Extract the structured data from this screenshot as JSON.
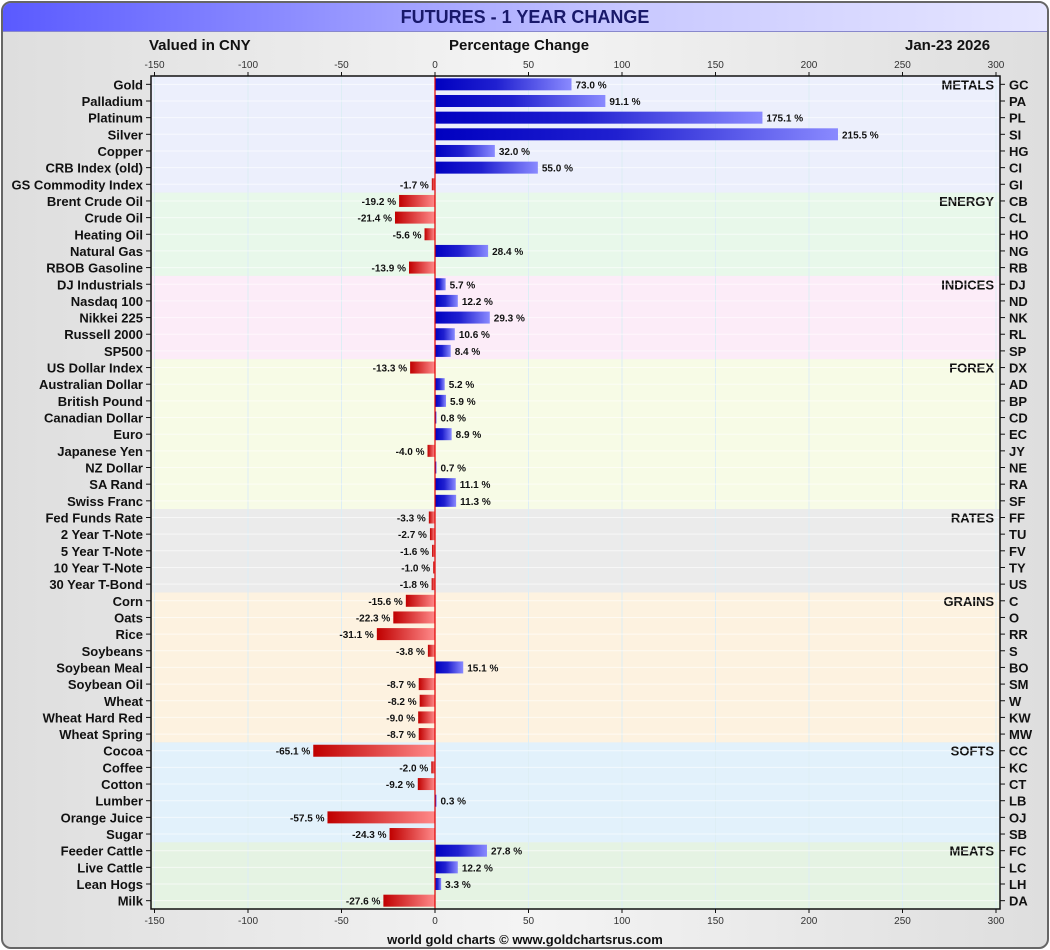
{
  "title": "FUTURES - 1 YEAR CHANGE",
  "header": {
    "currency": "Valued in CNY",
    "measure": "Percentage Change",
    "date": "Jan-23  2026"
  },
  "footer": "world gold charts © www.goldchartsrus.com",
  "colors": {
    "positive_dark": "#0000c0",
    "positive_light": "#8a8aff",
    "negative_dark": "#c00000",
    "negative_light": "#ff8a8a",
    "zero_line": "#e00000"
  },
  "chart_data": {
    "type": "bar",
    "orientation": "horizontal",
    "title": "FUTURES - 1 YEAR CHANGE",
    "xlabel": "Percentage Change",
    "xlim": [
      -150,
      300
    ],
    "xticks": [
      -150,
      -100,
      -50,
      0,
      50,
      100,
      150,
      200,
      250,
      300
    ],
    "grid": true,
    "value_suffix": " %",
    "groups": [
      {
        "name": "METALS",
        "color": "#eceffc",
        "items": [
          {
            "label": "Gold",
            "code": "GC",
            "value": 73.0
          },
          {
            "label": "Palladium",
            "code": "PA",
            "value": 91.1
          },
          {
            "label": "Platinum",
            "code": "PL",
            "value": 175.1
          },
          {
            "label": "Silver",
            "code": "SI",
            "value": 215.5
          },
          {
            "label": "Copper",
            "code": "HG",
            "value": 32.0
          },
          {
            "label": "CRB Index (old)",
            "code": "CI",
            "value": 55.0
          },
          {
            "label": "GS Commodity Index",
            "code": "GI",
            "value": -1.7
          }
        ]
      },
      {
        "name": "ENERGY",
        "color": "#e8f8ea",
        "items": [
          {
            "label": "Brent Crude Oil",
            "code": "CB",
            "value": -19.2
          },
          {
            "label": "Crude Oil",
            "code": "CL",
            "value": -21.4
          },
          {
            "label": "Heating Oil",
            "code": "HO",
            "value": -5.6
          },
          {
            "label": "Natural Gas",
            "code": "NG",
            "value": 28.4
          },
          {
            "label": "RBOB Gasoline",
            "code": "RB",
            "value": -13.9
          }
        ]
      },
      {
        "name": "INDICES",
        "color": "#fcecf8",
        "items": [
          {
            "label": "DJ Industrials",
            "code": "DJ",
            "value": 5.7
          },
          {
            "label": "Nasdaq 100",
            "code": "ND",
            "value": 12.2
          },
          {
            "label": "Nikkei 225",
            "code": "NK",
            "value": 29.3
          },
          {
            "label": "Russell 2000",
            "code": "RL",
            "value": 10.6
          },
          {
            "label": "SP500",
            "code": "SP",
            "value": 8.4
          }
        ]
      },
      {
        "name": "FOREX",
        "color": "#f7fbe6",
        "items": [
          {
            "label": "US Dollar Index",
            "code": "DX",
            "value": -13.3
          },
          {
            "label": "Australian Dollar",
            "code": "AD",
            "value": 5.2
          },
          {
            "label": "British Pound",
            "code": "BP",
            "value": 5.9
          },
          {
            "label": "Canadian Dollar",
            "code": "CD",
            "value": 0.8
          },
          {
            "label": "Euro",
            "code": "EC",
            "value": 8.9
          },
          {
            "label": "Japanese Yen",
            "code": "JY",
            "value": -4.0
          },
          {
            "label": "NZ Dollar",
            "code": "NE",
            "value": 0.7
          },
          {
            "label": "SA Rand",
            "code": "RA",
            "value": 11.1
          },
          {
            "label": "Swiss Franc",
            "code": "SF",
            "value": 11.3
          }
        ]
      },
      {
        "name": "RATES",
        "color": "#ebebeb",
        "items": [
          {
            "label": "Fed Funds Rate",
            "code": "FF",
            "value": -3.3
          },
          {
            "label": "2 Year T-Note",
            "code": "TU",
            "value": -2.7
          },
          {
            "label": "5 Year T-Note",
            "code": "FV",
            "value": -1.6
          },
          {
            "label": "10 Year T-Note",
            "code": "TY",
            "value": -1.0
          },
          {
            "label": "30 Year T-Bond",
            "code": "US",
            "value": -1.8
          }
        ]
      },
      {
        "name": "GRAINS",
        "color": "#fdf2e0",
        "items": [
          {
            "label": "Corn",
            "code": "C",
            "value": -15.6
          },
          {
            "label": "Oats",
            "code": "O",
            "value": -22.3
          },
          {
            "label": "Rice",
            "code": "RR",
            "value": -31.1
          },
          {
            "label": "Soybeans",
            "code": "S",
            "value": -3.8
          },
          {
            "label": "Soybean Meal",
            "code": "BO",
            "value": 15.1
          },
          {
            "label": "Soybean Oil",
            "code": "SM",
            "value": -8.7
          },
          {
            "label": "Wheat",
            "code": "W",
            "value": -8.2
          },
          {
            "label": "Wheat Hard Red",
            "code": "KW",
            "value": -9.0
          },
          {
            "label": "Wheat Spring",
            "code": "MW",
            "value": -8.7
          }
        ]
      },
      {
        "name": "SOFTS",
        "color": "#e2f1fb",
        "items": [
          {
            "label": "Cocoa",
            "code": "CC",
            "value": -65.1
          },
          {
            "label": "Coffee",
            "code": "KC",
            "value": -2.0
          },
          {
            "label": "Cotton",
            "code": "CT",
            "value": -9.2
          },
          {
            "label": "Lumber",
            "code": "LB",
            "value": 0.3
          },
          {
            "label": "Orange Juice",
            "code": "OJ",
            "value": -57.5
          },
          {
            "label": "Sugar",
            "code": "SB",
            "value": -24.3
          }
        ]
      },
      {
        "name": "MEATS",
        "color": "#e5f3e3",
        "items": [
          {
            "label": "Feeder Cattle",
            "code": "FC",
            "value": 27.8
          },
          {
            "label": "Live Cattle",
            "code": "LC",
            "value": 12.2
          },
          {
            "label": "Lean Hogs",
            "code": "LH",
            "value": 3.3
          },
          {
            "label": "Milk",
            "code": "DA",
            "value": -27.6
          }
        ]
      }
    ]
  }
}
